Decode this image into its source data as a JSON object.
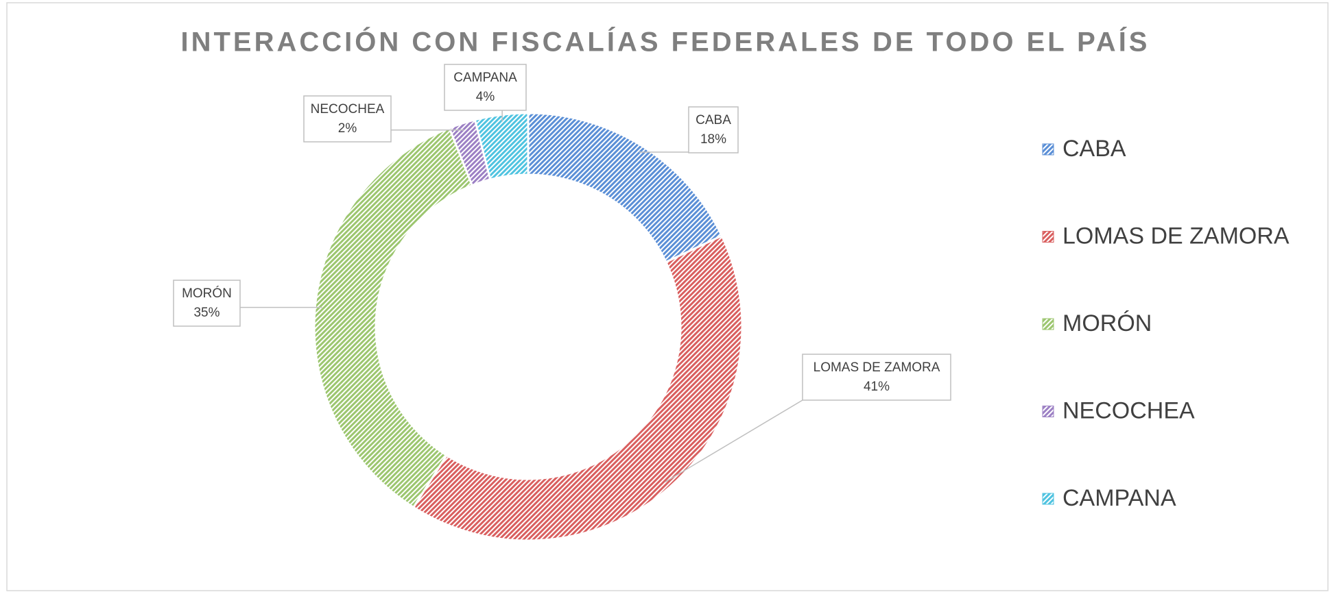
{
  "chart_data": {
    "type": "donut",
    "title": "INTERACCIÓN CON FISCALÍAS FEDERALES DE TODO EL PAÍS",
    "categories": [
      "CABA",
      "LOMAS DE ZAMORA",
      "MORÓN",
      "NECOCHEA",
      "CAMPANA"
    ],
    "values": [
      18,
      41,
      35,
      2,
      4
    ],
    "value_labels": [
      "18%",
      "41%",
      "35%",
      "2%",
      "4%"
    ],
    "colors": [
      "#5b8fd6",
      "#d95f5f",
      "#9cc66f",
      "#9c80c4",
      "#4fc3e0"
    ],
    "legend": "right"
  }
}
